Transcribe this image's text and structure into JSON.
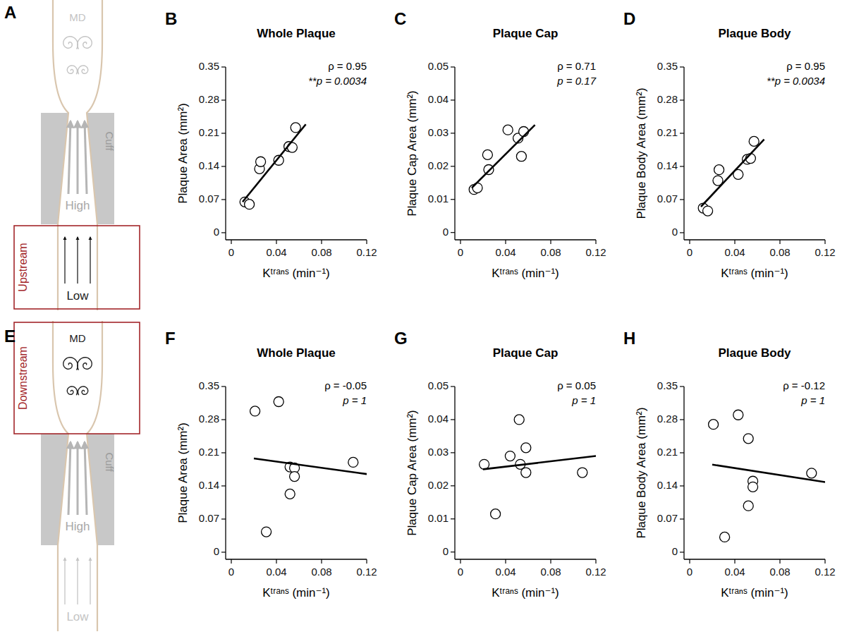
{
  "chart_data": [
    {
      "type": "scatter",
      "panel_label": "B",
      "title": "Whole Plaque",
      "x_label": "Kᵗʳᵃⁿˢ (min⁻¹)",
      "y_label": "Plaque Area (mm²)",
      "xlim": [
        -0.005,
        0.12
      ],
      "xticks": [
        0,
        0.04,
        0.08,
        0.12
      ],
      "ylim": [
        -0.015,
        0.35
      ],
      "yticks": [
        0,
        0.07,
        0.14,
        0.21,
        0.28,
        0.35
      ],
      "annotations": [
        "ρ = 0.95",
        "**p = 0.0034"
      ],
      "series": [
        {
          "type": "scatter",
          "marker": "circle",
          "color": "#000000",
          "x": [
            0.012,
            0.016,
            0.025,
            0.026,
            0.042,
            0.051,
            0.054,
            0.057
          ],
          "values": [
            0.065,
            0.06,
            0.135,
            0.15,
            0.153,
            0.182,
            0.18,
            0.222
          ]
        },
        {
          "type": "line",
          "line_style": "solid",
          "color": "#000000",
          "x": [
            0.01,
            0.066
          ],
          "values": [
            0.065,
            0.229
          ]
        }
      ]
    },
    {
      "type": "scatter",
      "panel_label": "C",
      "title": "Plaque Cap",
      "x_label": "Kᵗʳᵃⁿˢ (min⁻¹)",
      "y_label": "Plaque Cap Area (mm²)",
      "xlim": [
        -0.005,
        0.12
      ],
      "xticks": [
        0,
        0.04,
        0.08,
        0.12
      ],
      "ylim": [
        -0.0022,
        0.05
      ],
      "yticks": [
        0,
        0.01,
        0.02,
        0.03,
        0.04,
        0.05
      ],
      "annotations": [
        "ρ = 0.71",
        "p = 0.17"
      ],
      "series": [
        {
          "type": "scatter",
          "marker": "circle",
          "color": "#000000",
          "x": [
            0.012,
            0.015,
            0.024,
            0.025,
            0.042,
            0.051,
            0.054,
            0.056
          ],
          "values": [
            0.013,
            0.0135,
            0.0235,
            0.019,
            0.031,
            0.0285,
            0.023,
            0.0305
          ]
        },
        {
          "type": "line",
          "line_style": "solid",
          "color": "#000000",
          "x": [
            0.01,
            0.066
          ],
          "values": [
            0.0135,
            0.0325
          ]
        }
      ]
    },
    {
      "type": "scatter",
      "panel_label": "D",
      "title": "Plaque Body",
      "x_label": "Kᵗʳᵃⁿˢ (min⁻¹)",
      "y_label": "Plaque Body Area (mm²)",
      "xlim": [
        -0.005,
        0.12
      ],
      "xticks": [
        0,
        0.04,
        0.08,
        0.12
      ],
      "ylim": [
        -0.015,
        0.35
      ],
      "yticks": [
        0,
        0.07,
        0.14,
        0.21,
        0.28,
        0.35
      ],
      "annotations": [
        "ρ = 0.95",
        "**p = 0.0034"
      ],
      "series": [
        {
          "type": "scatter",
          "marker": "circle",
          "color": "#000000",
          "x": [
            0.012,
            0.016,
            0.025,
            0.026,
            0.043,
            0.051,
            0.054,
            0.057
          ],
          "values": [
            0.052,
            0.046,
            0.11,
            0.133,
            0.123,
            0.155,
            0.157,
            0.193
          ]
        },
        {
          "type": "line",
          "line_style": "solid",
          "color": "#000000",
          "x": [
            0.01,
            0.066
          ],
          "values": [
            0.055,
            0.197
          ]
        }
      ]
    },
    {
      "type": "scatter",
      "panel_label": "F",
      "title": "Whole Plaque",
      "x_label": "Kᵗʳᵃⁿˢ (min⁻¹)",
      "y_label": "Plaque Area (mm²)",
      "xlim": [
        -0.005,
        0.12
      ],
      "xticks": [
        0,
        0.04,
        0.08,
        0.12
      ],
      "ylim": [
        -0.015,
        0.35
      ],
      "yticks": [
        0,
        0.07,
        0.14,
        0.21,
        0.28,
        0.35
      ],
      "annotations": [
        "ρ = -0.05",
        "p = 1"
      ],
      "series": [
        {
          "type": "scatter",
          "marker": "circle",
          "color": "#000000",
          "x": [
            0.021,
            0.042,
            0.052,
            0.056,
            0.056,
            0.052,
            0.031,
            0.108
          ],
          "values": [
            0.298,
            0.318,
            0.18,
            0.178,
            0.16,
            0.123,
            0.043,
            0.19
          ]
        },
        {
          "type": "line",
          "line_style": "solid",
          "color": "#000000",
          "x": [
            0.02,
            0.12
          ],
          "values": [
            0.198,
            0.165
          ]
        }
      ]
    },
    {
      "type": "scatter",
      "panel_label": "G",
      "title": "Plaque Cap",
      "x_label": "Kᵗʳᵃⁿˢ (min⁻¹)",
      "y_label": "Plaque Cap Area (mm²)",
      "xlim": [
        -0.005,
        0.12
      ],
      "xticks": [
        0,
        0.04,
        0.08,
        0.12
      ],
      "ylim": [
        -0.0022,
        0.05
      ],
      "yticks": [
        0,
        0.01,
        0.02,
        0.03,
        0.04,
        0.05
      ],
      "annotations": [
        "ρ = 0.05",
        "p = 1"
      ],
      "series": [
        {
          "type": "scatter",
          "marker": "circle",
          "color": "#000000",
          "x": [
            0.021,
            0.031,
            0.044,
            0.052,
            0.053,
            0.058,
            0.058,
            0.108
          ],
          "values": [
            0.0265,
            0.0115,
            0.029,
            0.04,
            0.0265,
            0.0315,
            0.024,
            0.024
          ]
        },
        {
          "type": "line",
          "line_style": "solid",
          "color": "#000000",
          "x": [
            0.02,
            0.12
          ],
          "values": [
            0.025,
            0.029
          ]
        }
      ]
    },
    {
      "type": "scatter",
      "panel_label": "H",
      "title": "Plaque Body",
      "x_label": "Kᵗʳᵃⁿˢ (min⁻¹)",
      "y_label": "Plaque Body Area (mm²)",
      "xlim": [
        -0.005,
        0.12
      ],
      "xticks": [
        0,
        0.04,
        0.08,
        0.12
      ],
      "ylim": [
        -0.015,
        0.35
      ],
      "yticks": [
        0,
        0.07,
        0.14,
        0.21,
        0.28,
        0.35
      ],
      "annotations": [
        "ρ = -0.12",
        "p = 1"
      ],
      "series": [
        {
          "type": "scatter",
          "marker": "circle",
          "color": "#000000",
          "x": [
            0.021,
            0.043,
            0.052,
            0.056,
            0.056,
            0.052,
            0.031,
            0.108
          ],
          "values": [
            0.27,
            0.29,
            0.24,
            0.15,
            0.138,
            0.098,
            0.032,
            0.167
          ]
        },
        {
          "type": "line",
          "line_style": "solid",
          "color": "#000000",
          "x": [
            0.02,
            0.12
          ],
          "values": [
            0.185,
            0.148
          ]
        }
      ]
    }
  ],
  "diagrams": [
    {
      "panel_label": "A",
      "highlight": "upstream",
      "labels": {
        "md": "MD",
        "cuff": "Cuff",
        "high": "High",
        "low": "Low",
        "region": "Upstream"
      }
    },
    {
      "panel_label": "E",
      "highlight": "downstream",
      "labels": {
        "md": "MD",
        "cuff": "Cuff",
        "high": "High",
        "low": "Low",
        "region": "Downstream"
      }
    }
  ]
}
